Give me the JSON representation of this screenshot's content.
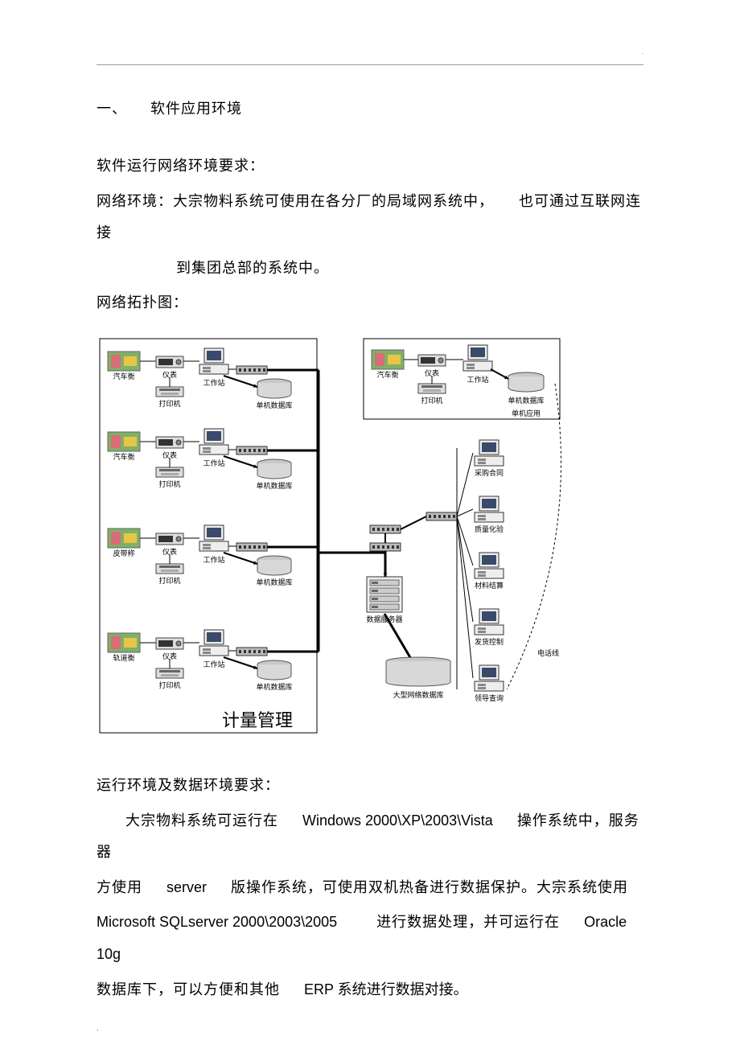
{
  "section_heading": "一、　　软件应用环境",
  "p1": "软件运行网络环境要求：",
  "p2a": "网络环境：大宗物料系统可使用在各分厂的局域网系统中，",
  "p2b": "也可通过互联网连接",
  "p2c": "到集团总部的系统中。",
  "p3": "网络拓扑图：",
  "p4": "运行环境及数据环境要求：",
  "p5_pre": "大宗物料系统可运行在",
  "p5_os": "Windows 2000\\XP\\2003\\Vista",
  "p5_mid": "操作系统中，服务器",
  "p6_pre": "方使用",
  "p6_srv": "server",
  "p6_post": "版操作系统，可使用双机热备进行数据保护。大宗系统使用",
  "p7_sql": "Microsoft SQLserver 2000\\2003\\2005",
  "p7_mid": "进行数据处理，并可运行在",
  "p7_ora": "Oracle 10g",
  "p8_pre": "数据库下，可以方便和其他",
  "p8_erp": "ERP 系统进行数据对接。",
  "diagram": {
    "border_color": "#000000",
    "line_color": "#000000",
    "bg": "#ffffff",
    "row_labels": {
      "scale1": "汽车衡",
      "meter": "仪表",
      "ws": "工作站",
      "printer": "打印机",
      "db_single": "单机数据库",
      "scale2": "汽车衡",
      "scale3": "皮带称",
      "scale4": "轨道衡",
      "single_app": "单机应用",
      "data_server": "数据服务器",
      "net_db": "大型网络数据库",
      "phone": "电话线",
      "right1": "采购合同",
      "right2": "质量化验",
      "right3": "材料结算",
      "right4": "发货控制",
      "right5": "领导查询",
      "mgmt": "计量管理"
    },
    "colors": {
      "photo1": "#7fb069",
      "photo2": "#d96c75",
      "photo3": "#e8c547",
      "db_top": "#c8c8c8",
      "db_body": "#d8d8d8",
      "comp_body": "#eeeeee",
      "screen": "#3a4a6a",
      "box": "#dddddd"
    }
  }
}
